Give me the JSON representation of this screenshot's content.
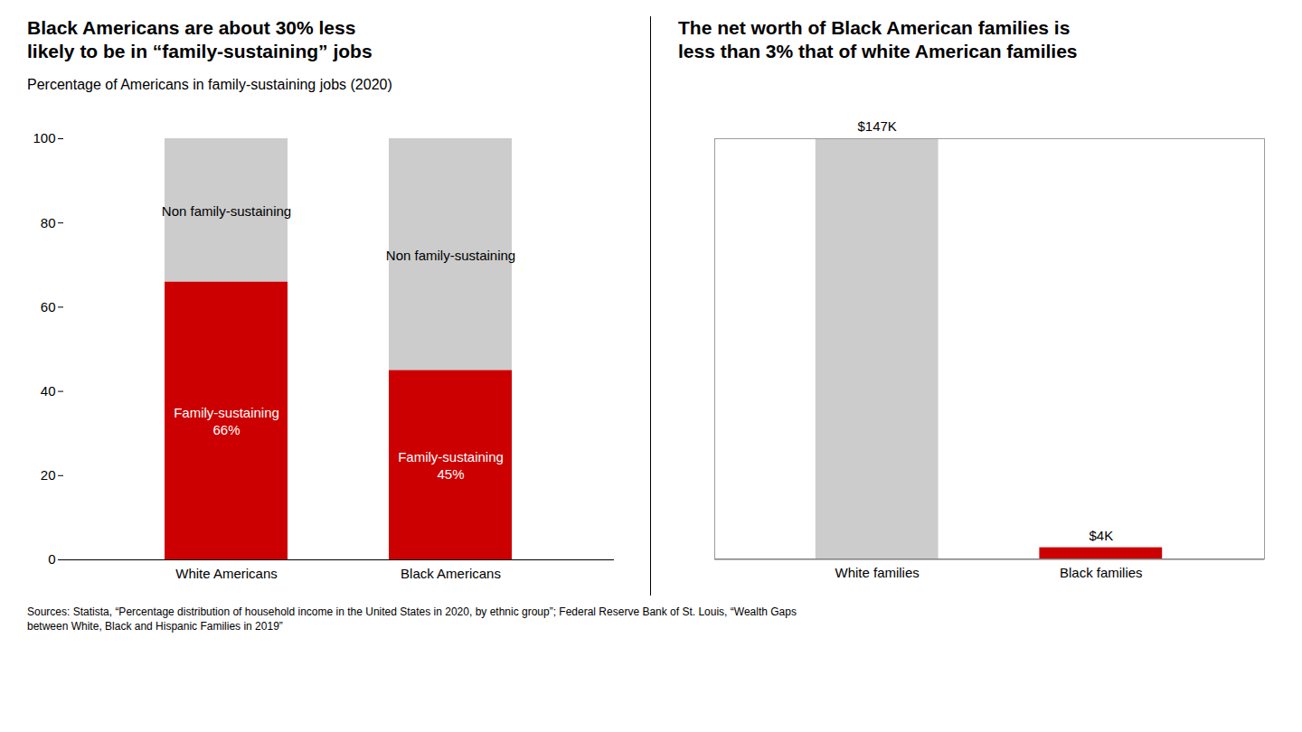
{
  "chart_data": [
    {
      "type": "bar",
      "stacked": true,
      "title": "Black Americans are about 30% less\nlikely to be in “family-sustaining” jobs",
      "subtitle": "Percentage of Americans in family-sustaining jobs (2020)",
      "categories": [
        "White Americans",
        "Black Americans"
      ],
      "series": [
        {
          "name": "Family-sustaining",
          "color": "#cc0000",
          "values": [
            66,
            45
          ],
          "value_labels": [
            "66%",
            "45%"
          ],
          "data_labels": true
        },
        {
          "name": "Non family-sustaining",
          "color": "#cccccc",
          "values": [
            34,
            55
          ],
          "data_labels": false
        }
      ],
      "ylim": [
        0,
        100
      ],
      "yticks": [
        0,
        20,
        40,
        60,
        80,
        100
      ],
      "grid": false
    },
    {
      "type": "bar",
      "title": "The net worth of Black American families is\nless than 3% that of white American families",
      "categories": [
        "White families",
        "Black families"
      ],
      "values": [
        147,
        4
      ],
      "value_labels": [
        "$147K",
        "$4K"
      ],
      "colors": [
        "#cccccc",
        "#cc0000"
      ],
      "data_labels": true,
      "ylim": [
        0,
        147
      ],
      "tick_labels": "x",
      "grid": false
    }
  ],
  "source": "Sources: Statista, “Percentage distribution of household income in the United States in 2020, by ethnic group”; Federal Reserve Bank of St. Louis, “Wealth Gaps\nbetween White, Black and Hispanic Families in 2019”"
}
